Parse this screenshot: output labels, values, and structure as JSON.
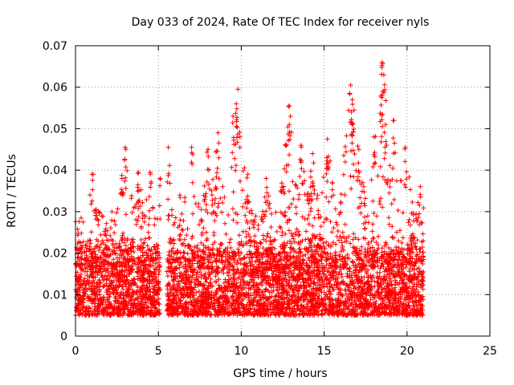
{
  "chart_data": {
    "type": "scatter",
    "title": "Day 033 of 2024, Rate Of TEC Index for receiver nyls",
    "xlabel": "GPS time / hours",
    "ylabel": "ROTI / TECUs",
    "xlim": [
      0,
      25
    ],
    "ylim": [
      0,
      0.07
    ],
    "xticks": [
      0,
      5,
      10,
      15,
      20,
      25
    ],
    "xtick_labels": [
      "0",
      "5",
      "10",
      "15",
      "20",
      "25"
    ],
    "yticks": [
      0,
      0.01,
      0.02,
      0.03,
      0.04,
      0.05,
      0.06,
      0.07
    ],
    "ytick_labels": [
      "0",
      "0.01",
      "0.02",
      "0.03",
      "0.04",
      "0.05",
      "0.06",
      "0.07"
    ],
    "grid": true,
    "marker": "+",
    "color": "#ff0000",
    "series": [
      {
        "name": "ROTI",
        "coverage": [
          [
            0.0,
            5.1
          ],
          [
            5.5,
            21.0
          ]
        ],
        "typical_range": [
          0.005,
          0.025
        ],
        "peaks": [
          [
            1.0,
            0.039
          ],
          [
            1.4,
            0.03
          ],
          [
            2.2,
            0.03
          ],
          [
            2.8,
            0.038
          ],
          [
            3.0,
            0.0455
          ],
          [
            3.8,
            0.0395
          ],
          [
            4.5,
            0.0395
          ],
          [
            5.1,
            0.038
          ],
          [
            5.6,
            0.0455
          ],
          [
            6.3,
            0.034
          ],
          [
            7.0,
            0.0455
          ],
          [
            8.0,
            0.045
          ],
          [
            8.6,
            0.049
          ],
          [
            9.5,
            0.053
          ],
          [
            9.8,
            0.0595
          ],
          [
            9.7,
            0.056
          ],
          [
            10.4,
            0.039
          ],
          [
            11.5,
            0.038
          ],
          [
            12.9,
            0.0555
          ],
          [
            12.9,
            0.051
          ],
          [
            13.6,
            0.046
          ],
          [
            14.3,
            0.044
          ],
          [
            15.2,
            0.0475
          ],
          [
            16.6,
            0.0605
          ],
          [
            16.7,
            0.057
          ],
          [
            16.8,
            0.0545
          ],
          [
            17.1,
            0.045
          ],
          [
            18.0,
            0.048
          ],
          [
            18.5,
            0.066
          ],
          [
            18.6,
            0.063
          ],
          [
            18.5,
            0.0575
          ],
          [
            18.7,
            0.051
          ],
          [
            19.2,
            0.052
          ],
          [
            19.9,
            0.0455
          ],
          [
            20.8,
            0.036
          ]
        ]
      }
    ]
  }
}
